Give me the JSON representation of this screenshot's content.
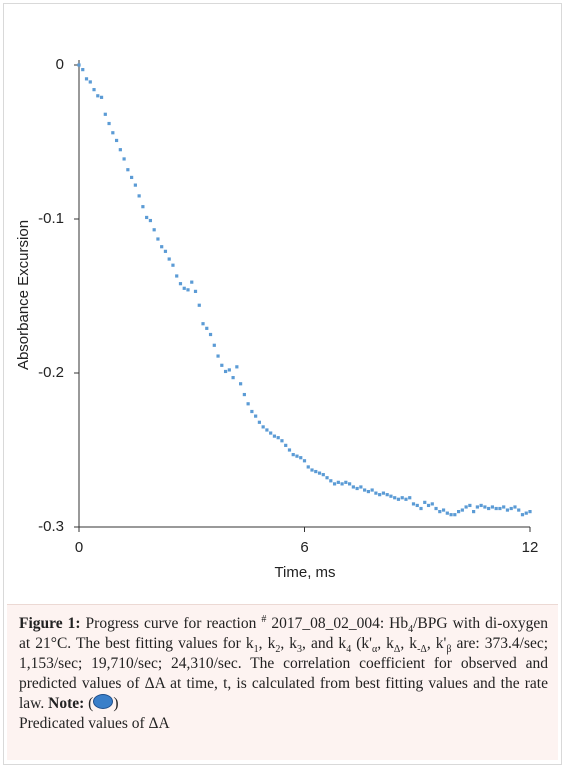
{
  "chart_data": {
    "type": "scatter",
    "xlabel": "Time, ms",
    "ylabel": "Absorbance Excursion",
    "color": "#5b9bd5",
    "xlim": [
      0,
      12
    ],
    "xticks": [
      0,
      6,
      12
    ],
    "ylim": [
      -0.3,
      0
    ],
    "yticks": [
      0,
      -0.1,
      -0.2,
      -0.3
    ],
    "x": [
      0,
      0.1,
      0.2,
      0.3,
      0.4,
      0.5,
      0.6,
      0.7,
      0.8,
      0.9,
      1,
      1.1,
      1.2,
      1.3,
      1.4,
      1.5,
      1.6,
      1.7,
      1.8,
      1.9,
      2,
      2.1,
      2.2,
      2.3,
      2.4,
      2.5,
      2.6,
      2.7,
      2.8,
      2.9,
      3,
      3.1,
      3.2,
      3.3,
      3.4,
      3.5,
      3.6,
      3.7,
      3.8,
      3.9,
      4,
      4.1,
      4.2,
      4.3,
      4.4,
      4.5,
      4.6,
      4.7,
      4.8,
      4.9,
      5,
      5.1,
      5.2,
      5.3,
      5.4,
      5.5,
      5.6,
      5.7,
      5.8,
      5.9,
      6,
      6.1,
      6.2,
      6.3,
      6.4,
      6.5,
      6.6,
      6.7,
      6.8,
      6.9,
      7,
      7.1,
      7.2,
      7.3,
      7.4,
      7.5,
      7.6,
      7.7,
      7.8,
      7.9,
      8,
      8.1,
      8.2,
      8.3,
      8.4,
      8.5,
      8.6,
      8.7,
      8.8,
      8.9,
      9,
      9.1,
      9.2,
      9.3,
      9.4,
      9.5,
      9.6,
      9.7,
      9.8,
      9.9,
      10,
      10.1,
      10.2,
      10.3,
      10.4,
      10.5,
      10.6,
      10.7,
      10.8,
      10.9,
      11,
      11.1,
      11.2,
      11.3,
      11.4,
      11.5,
      11.6,
      11.7,
      11.8,
      11.9,
      12
    ],
    "values": [
      0,
      -0.003,
      -0.009,
      -0.011,
      -0.016,
      -0.02,
      -0.021,
      -0.032,
      -0.038,
      -0.044,
      -0.049,
      -0.055,
      -0.061,
      -0.068,
      -0.073,
      -0.078,
      -0.085,
      -0.092,
      -0.099,
      -0.101,
      -0.107,
      -0.113,
      -0.118,
      -0.121,
      -0.126,
      -0.13,
      -0.137,
      -0.142,
      -0.145,
      -0.146,
      -0.141,
      -0.147,
      -0.156,
      -0.168,
      -0.171,
      -0.175,
      -0.182,
      -0.189,
      -0.195,
      -0.199,
      -0.198,
      -0.203,
      -0.196,
      -0.207,
      -0.214,
      -0.22,
      -0.225,
      -0.228,
      -0.232,
      -0.235,
      -0.237,
      -0.239,
      -0.241,
      -0.242,
      -0.244,
      -0.247,
      -0.25,
      -0.253,
      -0.254,
      -0.255,
      -0.257,
      -0.261,
      -0.263,
      -0.264,
      -0.265,
      -0.266,
      -0.268,
      -0.27,
      -0.272,
      -0.271,
      -0.272,
      -0.271,
      -0.272,
      -0.274,
      -0.275,
      -0.274,
      -0.276,
      -0.277,
      -0.276,
      -0.278,
      -0.279,
      -0.278,
      -0.279,
      -0.28,
      -0.281,
      -0.282,
      -0.281,
      -0.282,
      -0.281,
      -0.285,
      -0.286,
      -0.288,
      -0.284,
      -0.286,
      -0.285,
      -0.288,
      -0.29,
      -0.289,
      -0.291,
      -0.292,
      -0.292,
      -0.29,
      -0.289,
      -0.287,
      -0.286,
      -0.29,
      -0.287,
      -0.286,
      -0.287,
      -0.288,
      -0.287,
      -0.288,
      -0.288,
      -0.287,
      -0.289,
      -0.288,
      -0.287,
      -0.289,
      -0.292,
      -0.291,
      -0.29
    ]
  },
  "caption": {
    "parts": [
      {
        "bold": "Figure 1:"
      },
      " Progress curve for reaction ",
      {
        "sup": "#"
      },
      " 2017_08_02_004: Hb",
      {
        "sub": "4"
      },
      "/BPG with di-oxygen at 21°C.  The best fitting values for k",
      {
        "sub": "1"
      },
      ", k",
      {
        "sub": "2"
      },
      ", k",
      {
        "sub": "3"
      },
      ", and k",
      {
        "sub": "4"
      },
      " (k'",
      {
        "sub": "α"
      },
      ", k",
      {
        "sub": "Δ"
      },
      ", k",
      {
        "sub": "-Δ"
      },
      ", k'",
      {
        "sub": "β"
      },
      " are: 373.4/sec; 1,153/sec; 19,710/sec; 24,310/sec.  The correlation coefficient for observed and predicted values of ΔA at time, t, is calculated from best fitting values and the rate law. ",
      {
        "bold": "Note:"
      },
      " ("
    ],
    "note_close": ")",
    "note_text": "Predicated values of ΔA"
  }
}
